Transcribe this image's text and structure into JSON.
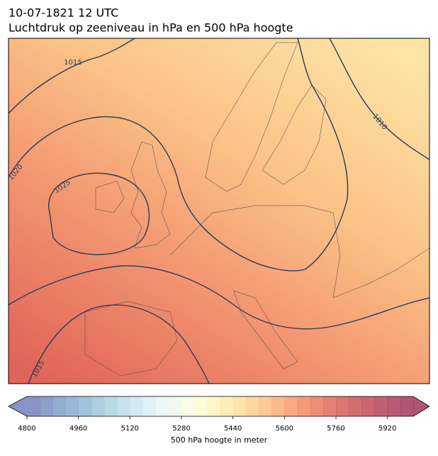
{
  "header": {
    "title_line1": "10-07-1821 12 UTC",
    "title_line2": "Luchtdruk op zeeniveau in hPa en 500 hPa hoogte"
  },
  "map": {
    "contour_labels": [
      "1015",
      "1020",
      "1025",
      "1010",
      "1015"
    ]
  },
  "colorbar": {
    "label": "500 hPa hoogte in meter",
    "lim": [
      4800,
      6000
    ],
    "ticks": [
      4800,
      4960,
      5120,
      5280,
      5440,
      5600,
      5760,
      5920
    ],
    "extend": "both",
    "colors": [
      "#6b78b8",
      "#7088bf",
      "#7898c6",
      "#80a6cc",
      "#8ab4d3",
      "#98c2d9",
      "#a8cfe0",
      "#b8dbe8",
      "#c8e5ef",
      "#d8eef5",
      "#e6f4f5",
      "#eff8ec",
      "#f7fbe0",
      "#fdfbcf",
      "#fef4bc",
      "#fee9a8",
      "#fedc98",
      "#fdcc88",
      "#fcbb7a",
      "#fba86e",
      "#f79563",
      "#f2825b",
      "#ea7055",
      "#e0604f",
      "#d4534d",
      "#c9484c",
      "#be3f4d",
      "#b3384d",
      "#a93150",
      "#9f2b52"
    ]
  }
}
